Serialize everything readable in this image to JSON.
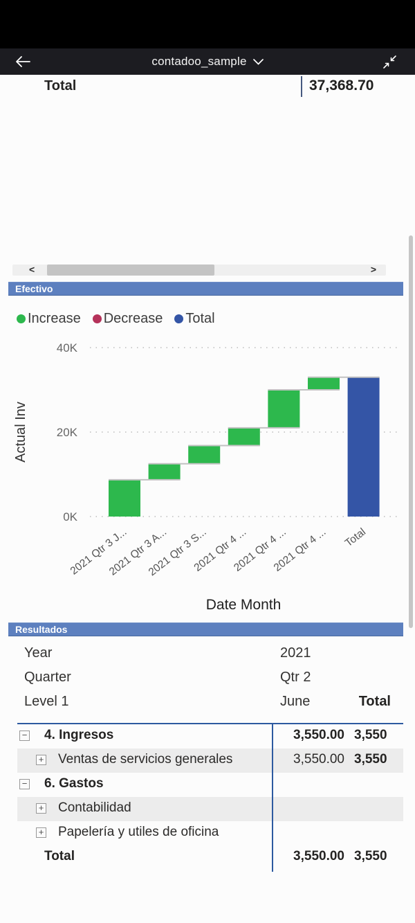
{
  "app_bar": {
    "title": "contadoo_sample"
  },
  "top_table": {
    "label": "Total",
    "value": "37,368.70"
  },
  "scrollbar": {
    "left_arrow": "<",
    "right_arrow": ">"
  },
  "efectivo": {
    "header": "Efectivo",
    "legend": [
      {
        "label": "Increase",
        "color": "#2DB84D"
      },
      {
        "label": "Decrease",
        "color": "#B5325A"
      },
      {
        "label": "Total",
        "color": "#3455A6"
      }
    ]
  },
  "chart_data": {
    "type": "waterfall",
    "title": "Efectivo",
    "xlabel": "Date Month",
    "ylabel": "Actual Inv",
    "ylim": [
      0,
      40000
    ],
    "y_ticks": [
      {
        "value": 0,
        "label": "0K"
      },
      {
        "value": 20000,
        "label": "20K"
      },
      {
        "value": 40000,
        "label": "40K"
      }
    ],
    "grid": "dotted",
    "legend_position": "top",
    "categories": [
      "2021 Qtr 3 J...",
      "2021 Qtr 3 A...",
      "2021 Qtr 3 S...",
      "2021 Qtr 4 ...",
      "2021 Qtr 4 ...",
      "2021 Qtr 4 ...",
      "Total"
    ],
    "increments": [
      8700,
      3800,
      4300,
      4200,
      9000,
      3000
    ],
    "total": 33000,
    "total_label": "Total",
    "colors": {
      "increase": "#2DB84D",
      "decrease": "#B5325A",
      "total": "#3455A6",
      "connector": "#c2c2c2"
    }
  },
  "resultados": {
    "header": "Resultados",
    "filters": [
      {
        "label": "Year",
        "value": "2021"
      },
      {
        "label": "Quarter",
        "value": "Qtr 2"
      }
    ],
    "level_row": {
      "label": "Level 1",
      "col1": "June",
      "col2": "Total"
    },
    "rows": [
      {
        "icon": "minus",
        "indent": 0,
        "label": "4. Ingresos",
        "bold": true,
        "col1": "3,550.00",
        "col1_bold": true,
        "col2": "3,550",
        "col2_bold": true,
        "shaded": false
      },
      {
        "icon": "plus",
        "indent": 1,
        "label": "Ventas de servicios generales",
        "bold": false,
        "col1": "3,550.00",
        "col1_bold": false,
        "col2": "3,550",
        "col2_bold": true,
        "shaded": true
      },
      {
        "icon": "minus",
        "indent": 0,
        "label": "6. Gastos",
        "bold": true,
        "col1": "",
        "col1_bold": false,
        "col2": "",
        "col2_bold": false,
        "shaded": false
      },
      {
        "icon": "plus",
        "indent": 1,
        "label": "Contabilidad",
        "bold": false,
        "col1": "",
        "col1_bold": false,
        "col2": "",
        "col2_bold": false,
        "shaded": true
      },
      {
        "icon": "plus",
        "indent": 1,
        "label": "Papelería y utiles de oficina",
        "bold": false,
        "col1": "",
        "col1_bold": false,
        "col2": "",
        "col2_bold": false,
        "shaded": false
      },
      {
        "icon": "none",
        "indent": 0,
        "label": "Total",
        "bold": true,
        "col1": "3,550.00",
        "col1_bold": true,
        "col2": "3,550",
        "col2_bold": true,
        "shaded": false
      }
    ]
  }
}
